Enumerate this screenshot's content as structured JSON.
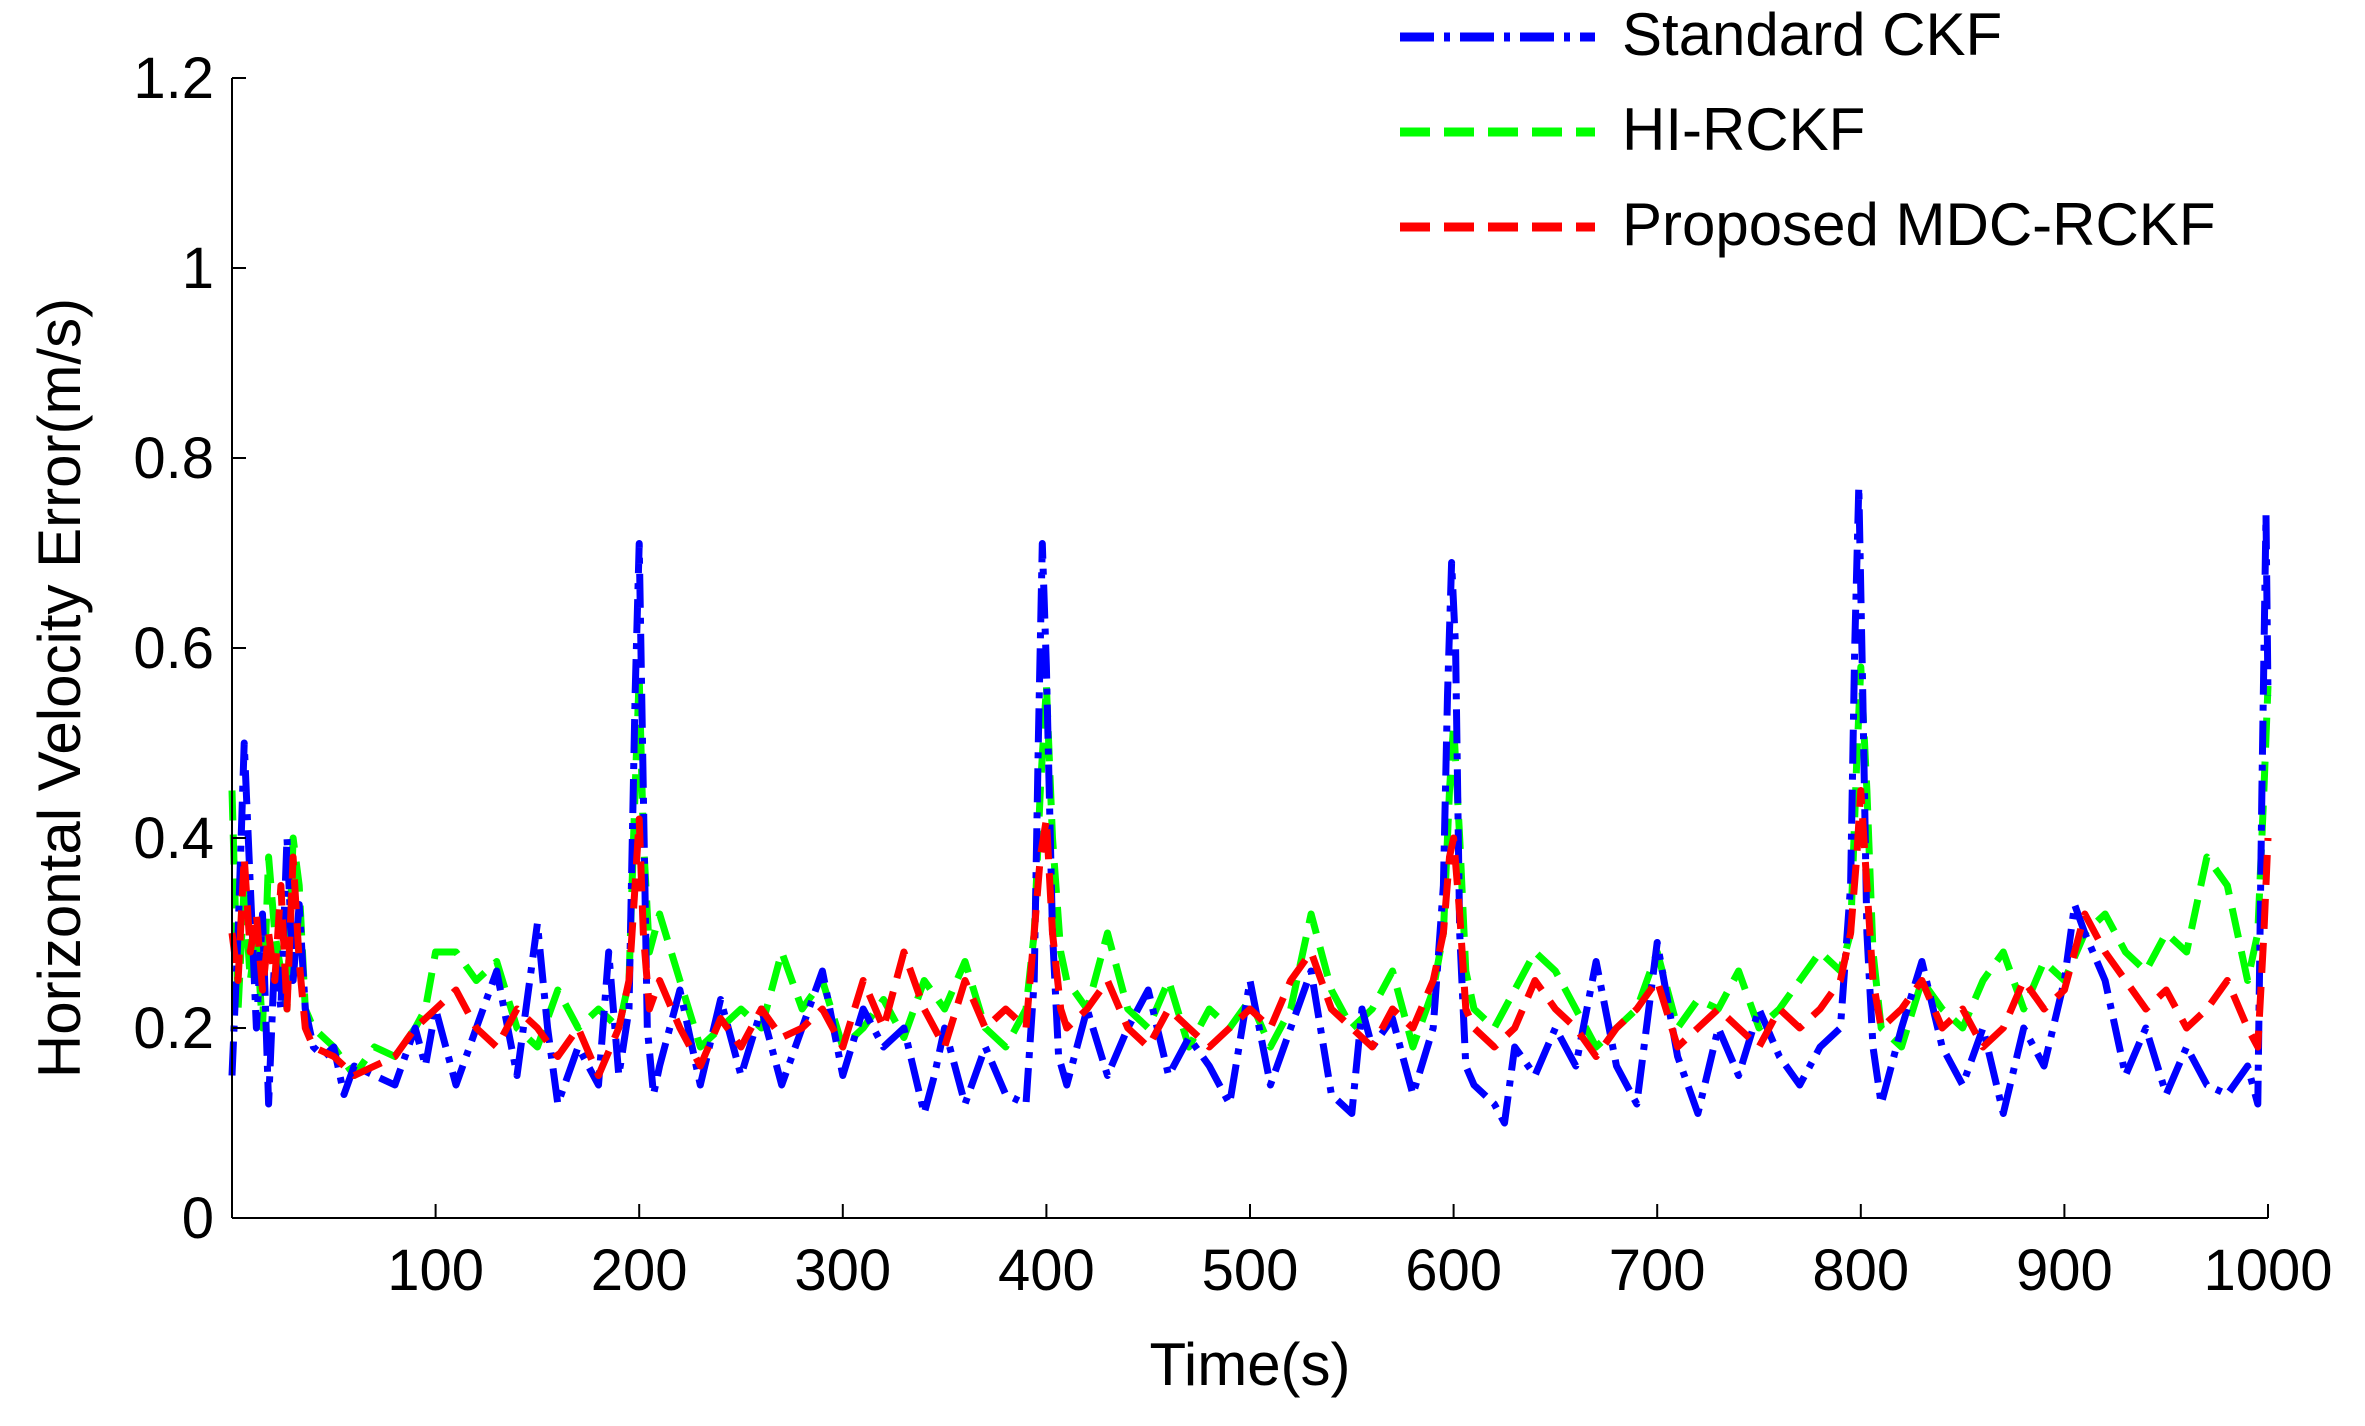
{
  "chart_data": {
    "type": "line",
    "title": "",
    "xlabel": "Time(s)",
    "ylabel": "Horizontal Velocity Error(m/s)",
    "xlim": [
      0,
      1000
    ],
    "ylim": [
      0,
      1.2
    ],
    "xticks": [
      100,
      200,
      300,
      400,
      500,
      600,
      700,
      800,
      900,
      1000
    ],
    "xtick_labels": [
      "100",
      "200",
      "300",
      "400",
      "500",
      "600",
      "700",
      "800",
      "900",
      "1000"
    ],
    "yticks": [
      0,
      0.2,
      0.4,
      0.6,
      0.8,
      1,
      1.2
    ],
    "ytick_labels": [
      "0",
      "0.2",
      "0.4",
      "0.6",
      "0.8",
      "1",
      "1.2"
    ],
    "grid": false,
    "legend_position": "top-right",
    "series": [
      {
        "name": "Standard CKF",
        "color": "#0000ff",
        "dash": "dash-dot",
        "x": [
          0,
          3,
          6,
          9,
          12,
          15,
          18,
          21,
          24,
          27,
          30,
          33,
          36,
          40,
          45,
          50,
          55,
          60,
          70,
          80,
          90,
          95,
          100,
          110,
          120,
          130,
          140,
          150,
          155,
          160,
          170,
          180,
          185,
          190,
          195,
          198,
          200,
          202,
          204,
          207,
          210,
          220,
          230,
          240,
          250,
          260,
          270,
          280,
          290,
          300,
          310,
          320,
          330,
          340,
          345,
          350,
          360,
          370,
          380,
          390,
          394,
          396,
          398,
          400,
          403,
          406,
          410,
          420,
          430,
          440,
          450,
          460,
          470,
          480,
          490,
          500,
          510,
          520,
          530,
          540,
          550,
          555,
          560,
          570,
          580,
          590,
          595,
          597,
          599,
          601,
          603,
          606,
          610,
          620,
          625,
          630,
          640,
          650,
          660,
          670,
          680,
          690,
          700,
          710,
          720,
          730,
          740,
          750,
          760,
          770,
          780,
          790,
          795,
          797,
          799,
          801,
          803,
          806,
          810,
          820,
          830,
          840,
          850,
          860,
          870,
          880,
          890,
          900,
          905,
          910,
          920,
          930,
          940,
          950,
          960,
          970,
          980,
          990,
          995,
          997,
          999,
          1000
        ],
        "y": [
          0.15,
          0.3,
          0.5,
          0.35,
          0.2,
          0.32,
          0.12,
          0.28,
          0.22,
          0.4,
          0.25,
          0.33,
          0.22,
          0.18,
          0.17,
          0.18,
          0.13,
          0.16,
          0.15,
          0.14,
          0.2,
          0.16,
          0.22,
          0.14,
          0.2,
          0.26,
          0.15,
          0.31,
          0.2,
          0.12,
          0.18,
          0.14,
          0.28,
          0.15,
          0.22,
          0.55,
          0.71,
          0.45,
          0.2,
          0.13,
          0.16,
          0.24,
          0.14,
          0.23,
          0.15,
          0.22,
          0.14,
          0.2,
          0.26,
          0.15,
          0.22,
          0.18,
          0.2,
          0.11,
          0.15,
          0.2,
          0.12,
          0.18,
          0.13,
          0.12,
          0.25,
          0.5,
          0.71,
          0.58,
          0.3,
          0.17,
          0.14,
          0.22,
          0.15,
          0.2,
          0.24,
          0.15,
          0.19,
          0.16,
          0.12,
          0.25,
          0.14,
          0.2,
          0.26,
          0.13,
          0.11,
          0.22,
          0.18,
          0.21,
          0.13,
          0.2,
          0.35,
          0.55,
          0.69,
          0.6,
          0.3,
          0.16,
          0.14,
          0.12,
          0.1,
          0.18,
          0.15,
          0.2,
          0.16,
          0.27,
          0.16,
          0.12,
          0.29,
          0.17,
          0.11,
          0.2,
          0.15,
          0.22,
          0.17,
          0.14,
          0.18,
          0.2,
          0.35,
          0.6,
          0.77,
          0.55,
          0.3,
          0.18,
          0.12,
          0.2,
          0.27,
          0.18,
          0.14,
          0.2,
          0.11,
          0.2,
          0.16,
          0.25,
          0.33,
          0.3,
          0.25,
          0.15,
          0.2,
          0.13,
          0.18,
          0.14,
          0.13,
          0.16,
          0.12,
          0.45,
          0.74,
          0.55
        ]
      },
      {
        "name": "HI-RCKF",
        "color": "#00ff00",
        "dash": "dashed",
        "x": [
          0,
          3,
          6,
          9,
          12,
          15,
          18,
          21,
          24,
          27,
          30,
          33,
          36,
          40,
          50,
          60,
          70,
          80,
          90,
          95,
          100,
          110,
          120,
          130,
          140,
          150,
          160,
          170,
          180,
          190,
          195,
          198,
          200,
          202,
          205,
          210,
          220,
          230,
          240,
          250,
          260,
          270,
          280,
          290,
          300,
          310,
          320,
          330,
          340,
          350,
          360,
          370,
          380,
          390,
          394,
          397,
          400,
          403,
          407,
          410,
          420,
          430,
          440,
          450,
          460,
          470,
          480,
          490,
          500,
          510,
          520,
          530,
          540,
          550,
          560,
          570,
          580,
          590,
          595,
          598,
          600,
          603,
          606,
          610,
          620,
          630,
          640,
          650,
          660,
          670,
          680,
          690,
          700,
          710,
          720,
          730,
          740,
          750,
          760,
          770,
          780,
          790,
          795,
          798,
          800,
          803,
          806,
          810,
          820,
          830,
          840,
          850,
          860,
          870,
          880,
          890,
          900,
          910,
          920,
          930,
          940,
          950,
          960,
          970,
          980,
          990,
          995,
          998,
          1000
        ],
        "y": [
          0.45,
          0.22,
          0.35,
          0.25,
          0.3,
          0.2,
          0.38,
          0.3,
          0.26,
          0.22,
          0.4,
          0.35,
          0.22,
          0.2,
          0.18,
          0.15,
          0.18,
          0.17,
          0.2,
          0.22,
          0.28,
          0.28,
          0.25,
          0.27,
          0.2,
          0.18,
          0.24,
          0.2,
          0.22,
          0.2,
          0.25,
          0.45,
          0.57,
          0.4,
          0.28,
          0.32,
          0.25,
          0.18,
          0.2,
          0.22,
          0.2,
          0.28,
          0.22,
          0.25,
          0.18,
          0.2,
          0.23,
          0.19,
          0.25,
          0.22,
          0.27,
          0.2,
          0.18,
          0.22,
          0.3,
          0.45,
          0.56,
          0.4,
          0.28,
          0.25,
          0.22,
          0.3,
          0.22,
          0.2,
          0.25,
          0.18,
          0.22,
          0.2,
          0.23,
          0.18,
          0.22,
          0.32,
          0.24,
          0.2,
          0.22,
          0.26,
          0.18,
          0.24,
          0.3,
          0.45,
          0.52,
          0.4,
          0.26,
          0.22,
          0.2,
          0.24,
          0.28,
          0.26,
          0.22,
          0.18,
          0.2,
          0.22,
          0.28,
          0.2,
          0.23,
          0.22,
          0.26,
          0.2,
          0.22,
          0.25,
          0.28,
          0.26,
          0.3,
          0.48,
          0.58,
          0.45,
          0.28,
          0.2,
          0.18,
          0.25,
          0.22,
          0.2,
          0.25,
          0.28,
          0.22,
          0.27,
          0.25,
          0.3,
          0.32,
          0.28,
          0.26,
          0.3,
          0.28,
          0.38,
          0.35,
          0.25,
          0.3,
          0.45,
          0.56
        ]
      },
      {
        "name": "Proposed MDC-RCKF",
        "color": "#ff0000",
        "dash": "dashed",
        "x": [
          0,
          3,
          6,
          9,
          12,
          15,
          18,
          21,
          24,
          27,
          30,
          33,
          36,
          40,
          50,
          60,
          70,
          80,
          90,
          100,
          110,
          120,
          130,
          140,
          150,
          160,
          170,
          180,
          190,
          195,
          198,
          200,
          202,
          205,
          210,
          220,
          230,
          240,
          250,
          260,
          270,
          280,
          290,
          300,
          310,
          320,
          330,
          340,
          350,
          360,
          370,
          380,
          390,
          394,
          397,
          400,
          403,
          407,
          410,
          420,
          430,
          440,
          450,
          460,
          470,
          480,
          490,
          500,
          510,
          520,
          530,
          540,
          550,
          560,
          570,
          580,
          590,
          595,
          598,
          600,
          603,
          606,
          610,
          620,
          630,
          640,
          650,
          660,
          670,
          680,
          690,
          700,
          710,
          720,
          730,
          740,
          750,
          760,
          770,
          780,
          790,
          795,
          798,
          800,
          803,
          806,
          810,
          820,
          830,
          840,
          850,
          860,
          870,
          880,
          890,
          900,
          910,
          920,
          930,
          940,
          950,
          960,
          970,
          980,
          990,
          995,
          998,
          1000
        ],
        "y": [
          0.3,
          0.25,
          0.38,
          0.28,
          0.32,
          0.24,
          0.3,
          0.25,
          0.35,
          0.22,
          0.38,
          0.27,
          0.2,
          0.18,
          0.17,
          0.15,
          0.16,
          0.17,
          0.2,
          0.22,
          0.24,
          0.2,
          0.18,
          0.22,
          0.2,
          0.17,
          0.2,
          0.15,
          0.2,
          0.25,
          0.35,
          0.42,
          0.3,
          0.22,
          0.25,
          0.2,
          0.16,
          0.21,
          0.18,
          0.22,
          0.19,
          0.2,
          0.22,
          0.18,
          0.25,
          0.2,
          0.28,
          0.22,
          0.18,
          0.25,
          0.2,
          0.22,
          0.2,
          0.3,
          0.38,
          0.42,
          0.3,
          0.22,
          0.2,
          0.22,
          0.25,
          0.2,
          0.18,
          0.22,
          0.2,
          0.18,
          0.2,
          0.22,
          0.2,
          0.25,
          0.28,
          0.22,
          0.2,
          0.18,
          0.22,
          0.2,
          0.25,
          0.3,
          0.38,
          0.4,
          0.32,
          0.22,
          0.2,
          0.18,
          0.2,
          0.25,
          0.22,
          0.2,
          0.17,
          0.2,
          0.22,
          0.25,
          0.18,
          0.2,
          0.22,
          0.2,
          0.18,
          0.22,
          0.2,
          0.22,
          0.25,
          0.3,
          0.38,
          0.45,
          0.35,
          0.25,
          0.2,
          0.22,
          0.25,
          0.2,
          0.22,
          0.18,
          0.2,
          0.25,
          0.22,
          0.24,
          0.32,
          0.28,
          0.25,
          0.22,
          0.24,
          0.2,
          0.22,
          0.25,
          0.2,
          0.18,
          0.3,
          0.4
        ]
      }
    ]
  }
}
